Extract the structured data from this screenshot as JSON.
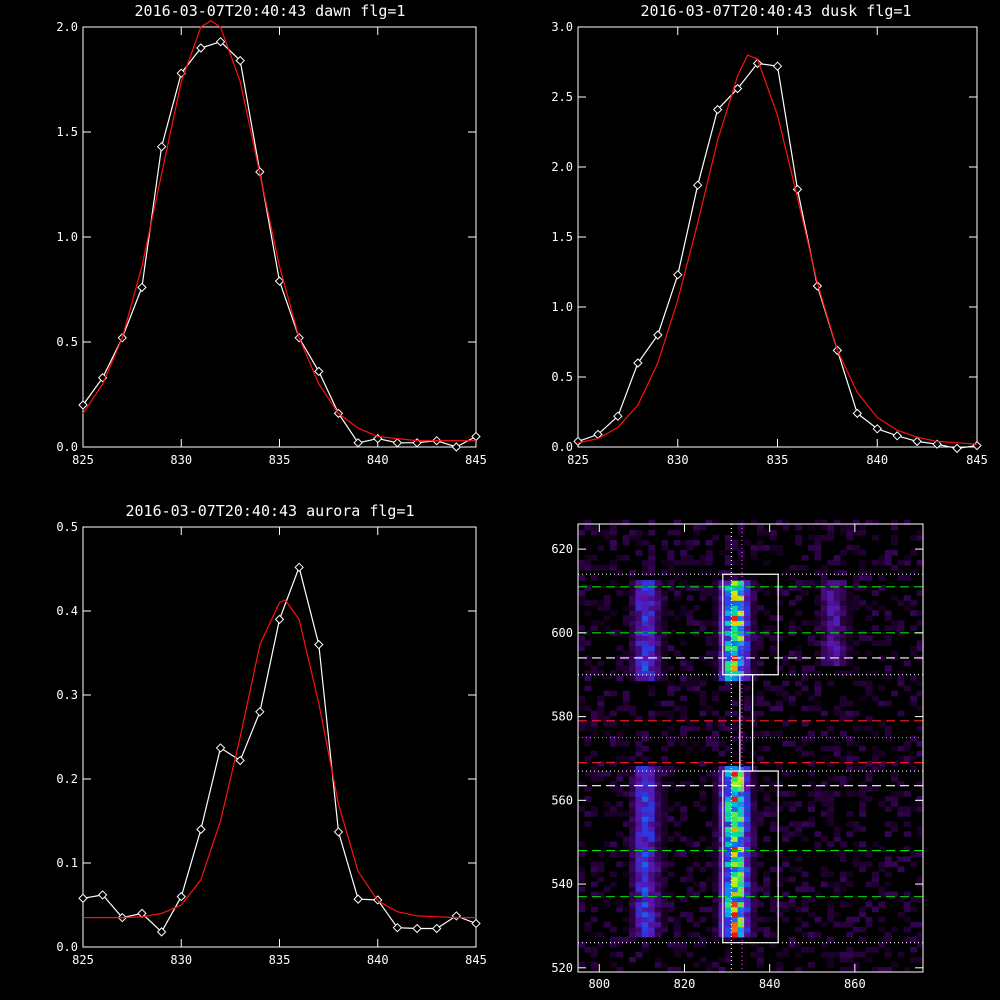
{
  "chart_data": [
    {
      "type": "line",
      "title": "2016-03-07T20:40:43 dawn flg=1",
      "xlim": [
        825,
        845
      ],
      "ylim": [
        0,
        2.0
      ],
      "xticks": [
        "825",
        "830",
        "835",
        "840",
        "845"
      ],
      "yticks": [
        "0.0",
        "0.5",
        "1.0",
        "1.5",
        "2.0"
      ],
      "series": [
        {
          "x": [
            825,
            826,
            827,
            828,
            829,
            830,
            831,
            832,
            833,
            834,
            835,
            836,
            837,
            838,
            839,
            840,
            841,
            842,
            843,
            844,
            845
          ],
          "y": [
            0.2,
            0.33,
            0.52,
            0.76,
            1.43,
            1.78,
            1.9,
            1.93,
            1.84,
            1.31,
            0.79,
            0.52,
            0.36,
            0.16,
            0.02,
            0.04,
            0.02,
            0.02,
            0.03,
            0.0,
            0.05
          ],
          "color": "#ffffff",
          "markers": true
        },
        {
          "x": [
            825,
            826,
            827,
            828,
            829,
            830,
            831,
            831.5,
            832,
            833,
            834,
            835,
            836,
            837,
            838,
            839,
            840,
            841,
            842,
            843,
            844,
            845
          ],
          "y": [
            0.16,
            0.3,
            0.52,
            0.86,
            1.3,
            1.74,
            2.0,
            2.03,
            2.0,
            1.74,
            1.3,
            0.86,
            0.52,
            0.3,
            0.16,
            0.09,
            0.05,
            0.04,
            0.03,
            0.03,
            0.03,
            0.03
          ],
          "color": "#ff1010",
          "markers": false
        }
      ]
    },
    {
      "type": "line",
      "title": "2016-03-07T20:40:43 dusk flg=1",
      "xlim": [
        825,
        845
      ],
      "ylim": [
        0,
        3.0
      ],
      "xticks": [
        "825",
        "830",
        "835",
        "840",
        "845"
      ],
      "yticks": [
        "0.0",
        "0.5",
        "1.0",
        "1.5",
        "2.0",
        "2.5",
        "3.0"
      ],
      "series": [
        {
          "x": [
            825,
            826,
            827,
            828,
            829,
            830,
            831,
            832,
            833,
            834,
            835,
            836,
            837,
            838,
            839,
            840,
            841,
            842,
            843,
            844,
            845
          ],
          "y": [
            0.04,
            0.09,
            0.22,
            0.6,
            0.8,
            1.23,
            1.87,
            2.41,
            2.56,
            2.74,
            2.72,
            1.84,
            1.15,
            0.69,
            0.24,
            0.13,
            0.08,
            0.04,
            0.02,
            -0.01,
            0.01
          ],
          "color": "#ffffff",
          "markers": true
        },
        {
          "x": [
            825,
            826,
            827,
            828,
            829,
            830,
            831,
            832,
            833,
            833.5,
            834,
            835,
            836,
            837,
            838,
            839,
            840,
            841,
            842,
            843,
            844,
            845
          ],
          "y": [
            0.03,
            0.06,
            0.14,
            0.3,
            0.6,
            1.05,
            1.6,
            2.19,
            2.65,
            2.8,
            2.77,
            2.37,
            1.78,
            1.17,
            0.69,
            0.39,
            0.21,
            0.12,
            0.07,
            0.04,
            0.03,
            0.02
          ],
          "color": "#ff1010",
          "markers": false
        }
      ]
    },
    {
      "type": "line",
      "title": "2016-03-07T20:40:43 aurora flg=1",
      "xlim": [
        825,
        845
      ],
      "ylim": [
        0,
        0.5
      ],
      "xticks": [
        "825",
        "830",
        "835",
        "840",
        "845"
      ],
      "yticks": [
        "0.0",
        "0.1",
        "0.2",
        "0.3",
        "0.4",
        "0.5"
      ],
      "series": [
        {
          "x": [
            825,
            826,
            827,
            828,
            829,
            830,
            831,
            832,
            833,
            834,
            835,
            836,
            837,
            838,
            839,
            840,
            841,
            842,
            843,
            844,
            845
          ],
          "y": [
            0.058,
            0.062,
            0.035,
            0.04,
            0.018,
            0.06,
            0.14,
            0.237,
            0.222,
            0.28,
            0.39,
            0.452,
            0.36,
            0.137,
            0.057,
            0.056,
            0.023,
            0.022,
            0.022,
            0.037,
            0.028
          ],
          "color": "#ffffff",
          "markers": true
        },
        {
          "x": [
            825,
            826,
            827,
            828,
            829,
            830,
            831,
            832,
            833,
            834,
            835,
            835.3,
            836,
            837,
            838,
            839,
            840,
            841,
            842,
            843,
            844,
            845
          ],
          "y": [
            0.035,
            0.035,
            0.035,
            0.036,
            0.04,
            0.05,
            0.08,
            0.15,
            0.25,
            0.36,
            0.41,
            0.413,
            0.39,
            0.29,
            0.17,
            0.09,
            0.055,
            0.042,
            0.037,
            0.036,
            0.035,
            0.035
          ],
          "color": "#ff1010",
          "markers": false
        }
      ]
    },
    {
      "type": "heatmap",
      "xlim": [
        795,
        876
      ],
      "ylim": [
        519,
        626
      ],
      "xticks": [
        "800",
        "820",
        "840",
        "860"
      ],
      "yticks": [
        "520",
        "540",
        "560",
        "580",
        "600",
        "620"
      ],
      "bands": [
        {
          "x_center": 811,
          "y_ranges": [
            [
              527,
              568
            ],
            [
              588,
              612
            ]
          ],
          "peak": 0.45
        },
        {
          "x_center": 832,
          "y_ranges": [
            [
              527,
              568
            ],
            [
              588,
              612
            ]
          ],
          "peak": 0.9
        },
        {
          "x_center": 855,
          "y_ranges": [
            [
              592,
              612
            ]
          ],
          "peak": 0.3
        }
      ],
      "boxes": [
        {
          "x": [
            829,
            842
          ],
          "y": [
            590,
            614
          ]
        },
        {
          "x": [
            829,
            842
          ],
          "y": [
            526,
            567
          ]
        },
        {
          "x": [
            833,
            836
          ],
          "y": [
            567,
            590
          ]
        }
      ],
      "vlines": [
        {
          "x": 831,
          "style": "dotted",
          "color": "#ffffff"
        },
        {
          "x": 833.5,
          "style": "dotted",
          "color": "#ff40ff"
        }
      ],
      "hlines": [
        {
          "y": 614,
          "style": "dotted",
          "color": "#ffffff"
        },
        {
          "y": 611,
          "style": "dashed",
          "color": "#00e000"
        },
        {
          "y": 600,
          "style": "dashed",
          "color": "#00e000"
        },
        {
          "y": 594,
          "style": "dashed",
          "color": "#ffffff"
        },
        {
          "y": 590,
          "style": "dotted",
          "color": "#ffffff"
        },
        {
          "y": 579,
          "style": "dashed",
          "color": "#ff2020"
        },
        {
          "y": 575,
          "style": "dotted",
          "color": "#ff40ff"
        },
        {
          "y": 569,
          "style": "dashed",
          "color": "#ff2020"
        },
        {
          "y": 567,
          "style": "dotted",
          "color": "#ffffff"
        },
        {
          "y": 563.5,
          "style": "dashed",
          "color": "#ffffff"
        },
        {
          "y": 548,
          "style": "dashed",
          "color": "#00e000"
        },
        {
          "y": 537,
          "style": "dashed",
          "color": "#00e000"
        },
        {
          "y": 526,
          "style": "dotted",
          "color": "#ffffff"
        }
      ]
    }
  ]
}
